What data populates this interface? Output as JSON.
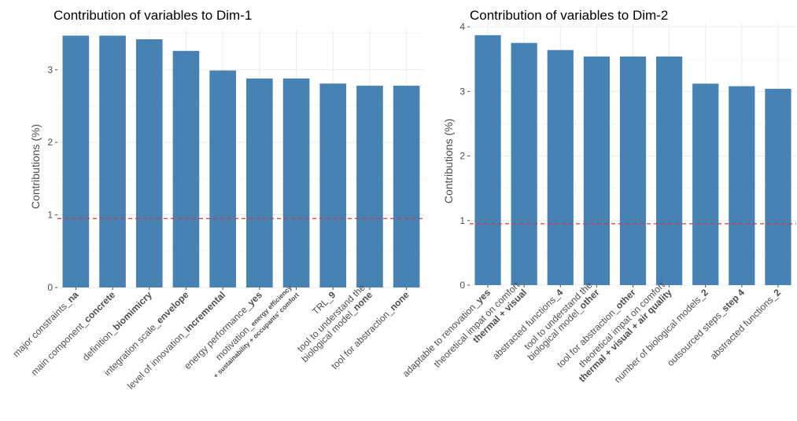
{
  "chart_data": [
    {
      "type": "bar",
      "title": "Contribution of variables to Dim-1",
      "ylabel": "Contributions (%)",
      "xlabel": "",
      "ylim": [
        0,
        3.55
      ],
      "yticks": [
        0,
        1,
        2,
        3
      ],
      "grid": true,
      "reference_line": 0.95,
      "reference_color": "#e23030",
      "bar_color": "#4682b4",
      "categories": [
        [
          {
            "t": "major constraints_"
          },
          {
            "t": "na",
            "w": "b"
          }
        ],
        [
          {
            "t": "main component_"
          },
          {
            "t": "concrete",
            "w": "b"
          }
        ],
        [
          {
            "t": "definition_"
          },
          {
            "t": "biomimicry",
            "w": "b"
          }
        ],
        [
          {
            "t": "integration scale_"
          },
          {
            "t": "envelope",
            "w": "b"
          }
        ],
        [
          {
            "t": "level of innovation_"
          },
          {
            "t": "incremental",
            "w": "b"
          }
        ],
        [
          {
            "t": "energy performance_"
          },
          {
            "t": "yes",
            "w": "b"
          }
        ],
        [
          {
            "t": "motivation_"
          },
          {
            "t": "energy efficiency",
            "w": "s"
          },
          {
            "t": "+ sustainability + occupants' comfort",
            "w": "s",
            "br": true
          }
        ],
        [
          {
            "t": "TRL_"
          },
          {
            "t": "9",
            "w": "b"
          }
        ],
        [
          {
            "t": "tool to understand the"
          },
          {
            "t": "biological model_",
            "br": true
          },
          {
            "t": "none",
            "w": "b"
          }
        ],
        [
          {
            "t": "tool for abstraction_"
          },
          {
            "t": "none",
            "w": "b"
          }
        ]
      ],
      "values": [
        3.47,
        3.47,
        3.42,
        3.26,
        2.99,
        2.88,
        2.88,
        2.81,
        2.78,
        2.78
      ]
    },
    {
      "type": "bar",
      "title": "Contribution of variables to Dim-2",
      "ylabel": "Contributions (%)",
      "xlabel": "",
      "ylim": [
        0,
        4.05
      ],
      "yticks": [
        0,
        1,
        2,
        3,
        4
      ],
      "grid": true,
      "reference_line": 0.95,
      "reference_color": "#e23030",
      "bar_color": "#4682b4",
      "categories": [
        [
          {
            "t": "adaptable to renovation_"
          },
          {
            "t": "yes",
            "w": "b"
          }
        ],
        [
          {
            "t": "theoretical impat on comfort"
          },
          {
            "t": "thermal + visual",
            "w": "b",
            "br": true
          }
        ],
        [
          {
            "t": "abstracted functions_"
          },
          {
            "t": "4",
            "w": "b"
          }
        ],
        [
          {
            "t": "tool to understand the"
          },
          {
            "t": "biological model_",
            "br": true
          },
          {
            "t": "other",
            "w": "b"
          }
        ],
        [
          {
            "t": "tool for abstraction_"
          },
          {
            "t": "other",
            "w": "b"
          }
        ],
        [
          {
            "t": "theoretical impat on comfort"
          },
          {
            "t": "thermal + visual + air quality",
            "w": "b",
            "br": true
          }
        ],
        [
          {
            "t": "number of biological models_"
          },
          {
            "t": "2",
            "w": "b"
          }
        ],
        [
          {
            "t": "outsourced steps_"
          },
          {
            "t": "step 4",
            "w": "b"
          }
        ],
        [
          {
            "t": "abstracted functions_"
          },
          {
            "t": "2",
            "w": "b"
          }
        ]
      ],
      "values": [
        3.87,
        3.75,
        3.64,
        3.54,
        3.54,
        3.54,
        3.12,
        3.08,
        3.04
      ]
    }
  ]
}
